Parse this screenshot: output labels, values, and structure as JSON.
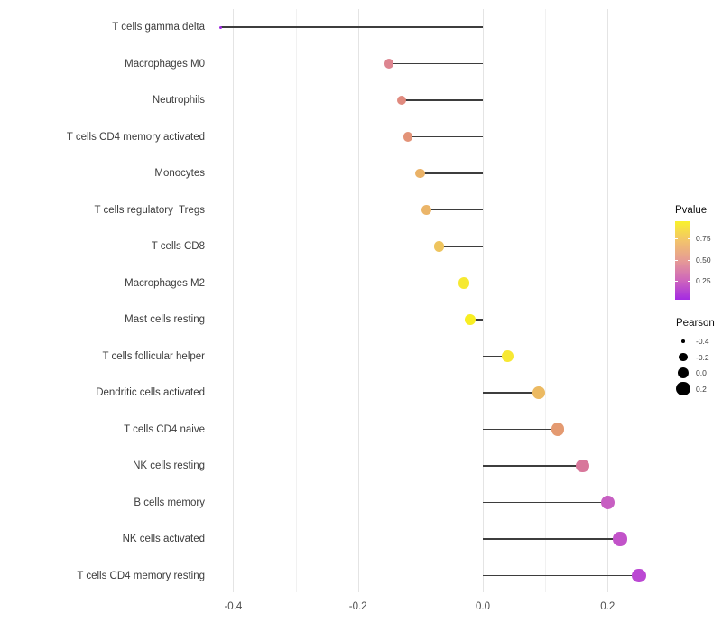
{
  "chart_data": {
    "type": "scatter",
    "subtype": "lollipop",
    "title": "",
    "xlabel": "",
    "ylabel": "",
    "xlim": [
      -0.455,
      0.285
    ],
    "x_ticks": [
      -0.4,
      -0.2,
      0.0,
      0.2
    ],
    "x_tick_labels": [
      "-0.4",
      "-0.2",
      "0.0",
      "0.2"
    ],
    "x_gridlines_minor": [
      -0.3,
      -0.1,
      0.1
    ],
    "grid": "vertical-only",
    "baseline": 0.0,
    "categories": [
      "T cells gamma delta",
      "Macrophages M0",
      "Neutrophils",
      "T cells CD4 memory activated",
      "Monocytes",
      "T cells regulatory  Tregs",
      "T cells CD8",
      "Macrophages M2",
      "Mast cells resting",
      "T cells follicular helper",
      "Dendritic cells activated",
      "T cells CD4 naive",
      "NK cells resting",
      "B cells memory",
      "NK cells activated",
      "T cells CD4 memory resting"
    ],
    "points": [
      {
        "label": "T cells gamma delta",
        "pearson": -0.42,
        "color": "#9d2ae0"
      },
      {
        "label": "Macrophages M0",
        "pearson": -0.15,
        "color": "#dd8590"
      },
      {
        "label": "Neutrophils",
        "pearson": -0.13,
        "color": "#e08a7e"
      },
      {
        "label": "T cells CD4 memory activated",
        "pearson": -0.12,
        "color": "#e39378"
      },
      {
        "label": "Monocytes",
        "pearson": -0.1,
        "color": "#eab267"
      },
      {
        "label": "T cells regulatory  Tregs",
        "pearson": -0.09,
        "color": "#ebb569"
      },
      {
        "label": "T cells CD8",
        "pearson": -0.07,
        "color": "#eec45e"
      },
      {
        "label": "Macrophages M2",
        "pearson": -0.03,
        "color": "#f6e931"
      },
      {
        "label": "Mast cells resting",
        "pearson": -0.02,
        "color": "#f8ee22"
      },
      {
        "label": "T cells follicular helper",
        "pearson": 0.04,
        "color": "#f7e833"
      },
      {
        "label": "Dendritic cells activated",
        "pearson": 0.09,
        "color": "#ecba62"
      },
      {
        "label": "T cells CD4 naive",
        "pearson": 0.12,
        "color": "#e49a71"
      },
      {
        "label": "NK cells resting",
        "pearson": 0.16,
        "color": "#d8779b"
      },
      {
        "label": "B cells memory",
        "pearson": 0.2,
        "color": "#c75fc2"
      },
      {
        "label": "NK cells activated",
        "pearson": 0.22,
        "color": "#c253c9"
      },
      {
        "label": "T cells CD4 memory resting",
        "pearson": 0.25,
        "color": "#bb48d3"
      }
    ],
    "legend_position": "right"
  },
  "legend_pvalue": {
    "title": "Pvalue",
    "tick_labels": [
      "0.75",
      "0.50",
      "0.25"
    ],
    "tick_fractions_from_bottom": [
      0.783,
      0.511,
      0.239
    ],
    "gradient_stops_bottom_to_top": [
      "#a42ae3",
      "#ce66bb",
      "#e69b95",
      "#f2c36c",
      "#f9f12c"
    ]
  },
  "legend_pearson": {
    "title": "Pearson",
    "entries": [
      {
        "label": "-0.4",
        "value": -0.4
      },
      {
        "label": "-0.2",
        "value": -0.2
      },
      {
        "label": "0.0",
        "value": 0.0
      },
      {
        "label": "0.2",
        "value": 0.2
      }
    ],
    "dot_color": "#000000"
  },
  "colors": {
    "background": "#ffffff",
    "stem": "#3d3d3d",
    "grid_major": "#e4e4e4",
    "grid_minor": "#f1f1f1",
    "axis_text": "#4d4d4d"
  }
}
